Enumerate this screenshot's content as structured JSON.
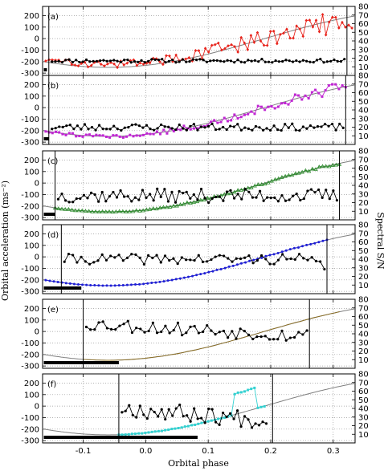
{
  "figure": {
    "xlabel": "Orbital phase",
    "ylabel_left": "Orbital acceleration (ms⁻²)",
    "ylabel_right": "Spectral S/N",
    "x_ticks": [
      "-0.1",
      "0.0",
      "0.1",
      "0.2",
      "0.3"
    ],
    "y_ticks_left": [
      "200",
      "100",
      "0",
      "-100",
      "-200",
      "-300"
    ],
    "y_ticks_right": [
      "80",
      "70",
      "60",
      "50",
      "40",
      "30",
      "20",
      "10"
    ]
  },
  "chart_data": {
    "type": "line",
    "xlim": [
      -0.165,
      0.335
    ],
    "ylim_left": [
      -320,
      280
    ],
    "ylim_right": [
      0,
      80
    ],
    "grid": true,
    "model_curve": {
      "amplitude": 250,
      "phase_offset": 0.44,
      "description_color": "#808080"
    },
    "panels": [
      {
        "label": "(a)",
        "color": "#e8231b",
        "marker": "diamond",
        "vlines": [
          -0.155,
          0.322
        ],
        "bar": [
          -0.163,
          -0.158
        ],
        "sn_seed": 11,
        "sn_base": 17,
        "sn_amp": 2,
        "accel_noise": 90,
        "accel_scale": 0.9,
        "accel_start": -0.16,
        "accel_end": 0.33,
        "n": 95
      },
      {
        "label": "(b)",
        "color": "#c026d3",
        "marker": "square",
        "vlines": [
          -0.155,
          0.32
        ],
        "bar": [
          -0.163,
          -0.155
        ],
        "sn_seed": 23,
        "sn_base": 20,
        "sn_amp": 4,
        "accel_noise": 40,
        "accel_scale": 1.0,
        "accel_start": -0.16,
        "accel_end": 0.32,
        "n": 90
      },
      {
        "label": "(c)",
        "color": "#2e8b2e",
        "marker": "triangle",
        "vlines": [
          -0.145,
          0.31
        ],
        "bar": [
          -0.163,
          -0.145
        ],
        "sn_seed": 37,
        "sn_base": 28,
        "sn_amp": 8,
        "accel_noise": 10,
        "accel_scale": 1.0,
        "accel_start": -0.145,
        "accel_end": 0.31,
        "n": 85
      },
      {
        "label": "(d)",
        "color": "#1f1fd6",
        "marker": "circle",
        "vlines": [
          -0.135,
          0.29
        ],
        "bar": [
          -0.163,
          -0.103
        ],
        "sn_seed": 41,
        "sn_base": 40,
        "sn_amp": 6,
        "accel_noise": 3,
        "accel_scale": 1.0,
        "accel_start": -0.16,
        "accel_end": 0.29,
        "n": 70
      },
      {
        "label": "(e)",
        "color": "#8b6d1f",
        "marker": "none",
        "vlines": [
          -0.1,
          0.262
        ],
        "bar": [
          -0.163,
          -0.043
        ],
        "sn_seed": 53,
        "sn_base": 48,
        "sn_amp": 8,
        "accel_noise": 2,
        "accel_scale": 1.0,
        "accel_start": -0.1,
        "accel_end": 0.31,
        "n": 60
      },
      {
        "label": "(f)",
        "color": "#33d1d1",
        "marker": "square",
        "vlines": [
          -0.043,
          0.203
        ],
        "bar": [
          -0.163,
          0.083
        ],
        "sn_seed": 67,
        "sn_base": 38,
        "sn_amp": 10,
        "accel_noise": 4,
        "accel_scale": 1.0,
        "accel_start": -0.043,
        "accel_end": 0.19,
        "n": 45
      }
    ]
  }
}
